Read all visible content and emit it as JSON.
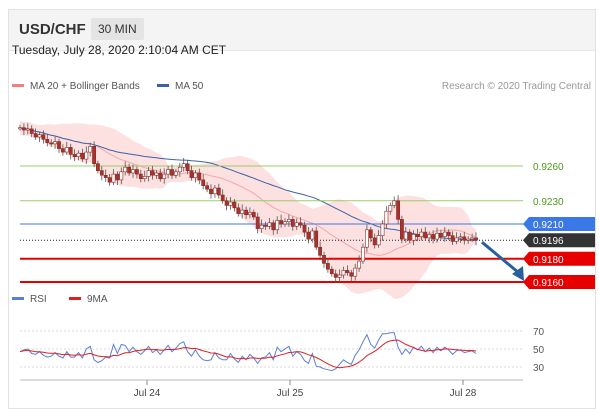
{
  "header": {
    "pair": "USD/CHF",
    "timeframe": "30 MIN"
  },
  "datetime": "Tuesday, July 28, 2020 2:10:04 AM CET",
  "legend": {
    "ma20": {
      "label": "MA 20 + Bollinger Bands",
      "color": "#f08080"
    },
    "ma50": {
      "label": "MA 50",
      "color": "#3a62a8"
    },
    "credit": "Research © 2020 Trading Central"
  },
  "rsi_legend": {
    "rsi": {
      "label": "RSI",
      "color": "#5b7fd6"
    },
    "ma9": {
      "label": "9MA",
      "color": "#e02020"
    }
  },
  "colors": {
    "candle_body": "#a8322e",
    "band_fill": "#fcd6d6",
    "support": "#e60000",
    "resistance": "#9acd68",
    "pivot": "#3b78e7",
    "arrow": "#2a5f9e"
  },
  "chart_data": [
    {
      "type": "candlestick",
      "x_ticks": [
        "Jul 24",
        "Jul 25",
        "Jul 28"
      ],
      "ylim": [
        0.914,
        0.929
      ],
      "levels": [
        {
          "label": "0.9260",
          "value": 0.926,
          "kind": "resistance"
        },
        {
          "label": "0.9230",
          "value": 0.923,
          "kind": "resistance"
        },
        {
          "label": "0.9210",
          "value": 0.921,
          "kind": "pivot"
        },
        {
          "label": "0.9196",
          "value": 0.9196,
          "kind": "last"
        },
        {
          "label": "0.9180",
          "value": 0.918,
          "kind": "support"
        },
        {
          "label": "0.9160",
          "value": 0.916,
          "kind": "support"
        }
      ],
      "close": [
        0.9293,
        0.9291,
        0.9292,
        0.9288,
        0.9285,
        0.9287,
        0.9283,
        0.928,
        0.9279,
        0.9281,
        0.9275,
        0.9272,
        0.9276,
        0.927,
        0.9268,
        0.9271,
        0.9266,
        0.9272,
        0.9277,
        0.9262,
        0.9256,
        0.9252,
        0.925,
        0.9246,
        0.9253,
        0.9248,
        0.9255,
        0.9259,
        0.9254,
        0.9257,
        0.9253,
        0.9249,
        0.9251,
        0.9256,
        0.9252,
        0.9254,
        0.9249,
        0.9253,
        0.9257,
        0.9252,
        0.9255,
        0.9259,
        0.9262,
        0.9256,
        0.925,
        0.9254,
        0.9248,
        0.9243,
        0.924,
        0.9236,
        0.9241,
        0.9235,
        0.923,
        0.9226,
        0.9229,
        0.9224,
        0.9219,
        0.9222,
        0.9218,
        0.922,
        0.9216,
        0.9206,
        0.9209,
        0.9208,
        0.9211,
        0.9205,
        0.9213,
        0.921,
        0.9212,
        0.9214,
        0.9208,
        0.9211,
        0.9209,
        0.9203,
        0.9197,
        0.9204,
        0.919,
        0.9183,
        0.9176,
        0.9171,
        0.9167,
        0.9164,
        0.9166,
        0.917,
        0.9168,
        0.9165,
        0.9172,
        0.9178,
        0.919,
        0.9205,
        0.9198,
        0.9192,
        0.92,
        0.921,
        0.9221,
        0.9226,
        0.923,
        0.9214,
        0.9197,
        0.9203,
        0.9196,
        0.9201,
        0.9199,
        0.9203,
        0.9198,
        0.9201,
        0.9197,
        0.9202,
        0.9199,
        0.9203,
        0.92,
        0.9195,
        0.9198,
        0.9199,
        0.9196,
        0.9197,
        0.9198,
        0.9196
      ],
      "projection": {
        "from": 0.9196,
        "to": 0.916
      }
    },
    {
      "type": "line",
      "title": "RSI",
      "y_ticks": [
        70,
        50,
        30
      ],
      "ylim": [
        20,
        80
      ],
      "series": [
        {
          "name": "RSI",
          "values": [
            47,
            49,
            50,
            45,
            44,
            47,
            43,
            41,
            42,
            46,
            42,
            40,
            47,
            41,
            41,
            46,
            40,
            50,
            53,
            38,
            35,
            37,
            41,
            40,
            55,
            45,
            55,
            54,
            47,
            52,
            47,
            44,
            48,
            53,
            46,
            49,
            44,
            49,
            54,
            47,
            51,
            56,
            58,
            47,
            42,
            49,
            42,
            38,
            37,
            38,
            46,
            40,
            38,
            38,
            45,
            39,
            35,
            42,
            38,
            44,
            40,
            34,
            40,
            41,
            46,
            38,
            52,
            47,
            50,
            53,
            42,
            47,
            44,
            37,
            34,
            45,
            31,
            30,
            28,
            27,
            26,
            28,
            33,
            38,
            35,
            33,
            43,
            49,
            58,
            66,
            55,
            51,
            60,
            67,
            67,
            68,
            68,
            52,
            44,
            50,
            45,
            52,
            49,
            53,
            47,
            51,
            46,
            52,
            48,
            52,
            49,
            44,
            48,
            49,
            46,
            47,
            48,
            45
          ]
        },
        {
          "name": "9MA",
          "values": [
            47,
            48,
            48.7,
            47.8,
            47,
            47,
            46.4,
            45.6,
            45.3,
            45.2,
            44.5,
            43.8,
            44.2,
            43.5,
            43.1,
            43.6,
            43,
            44.3,
            45.1,
            43.5,
            42.2,
            41.7,
            41.6,
            41.1,
            43,
            42.6,
            44.2,
            45.8,
            45.9,
            47.2,
            48.2,
            48.6,
            49.3,
            49.9,
            49.1,
            49.4,
            48.7,
            48.9,
            49.6,
            49.4,
            49.6,
            50.4,
            51.6,
            51.4,
            50.6,
            50.7,
            49.4,
            47.9,
            46.9,
            45.6,
            45.5,
            44.3,
            42.7,
            41.1,
            41.3,
            40.2,
            39.2,
            39.4,
            39,
            40,
            40.1,
            39.6,
            39.6,
            39.9,
            41,
            40.9,
            42.4,
            43.6,
            44.7,
            46.1,
            46.3,
            47.1,
            46.8,
            45.4,
            43.6,
            42.4,
            40.6,
            38.4,
            35.9,
            33.4,
            31.3,
            29.8,
            29.1,
            29.7,
            30.3,
            31.1,
            32.9,
            35.4,
            38.6,
            42.7,
            45.1,
            47.5,
            50.6,
            54.3,
            57.4,
            59,
            59.8,
            59.9,
            57.6,
            55.1,
            53.3,
            51.7,
            49.5,
            48.4,
            47.5,
            48.2,
            48.4,
            49.1,
            49.2,
            50,
            50,
            49.4,
            49.1,
            48.8,
            48.5,
            48.2,
            48.3,
            47.8
          ]
        }
      ]
    }
  ]
}
